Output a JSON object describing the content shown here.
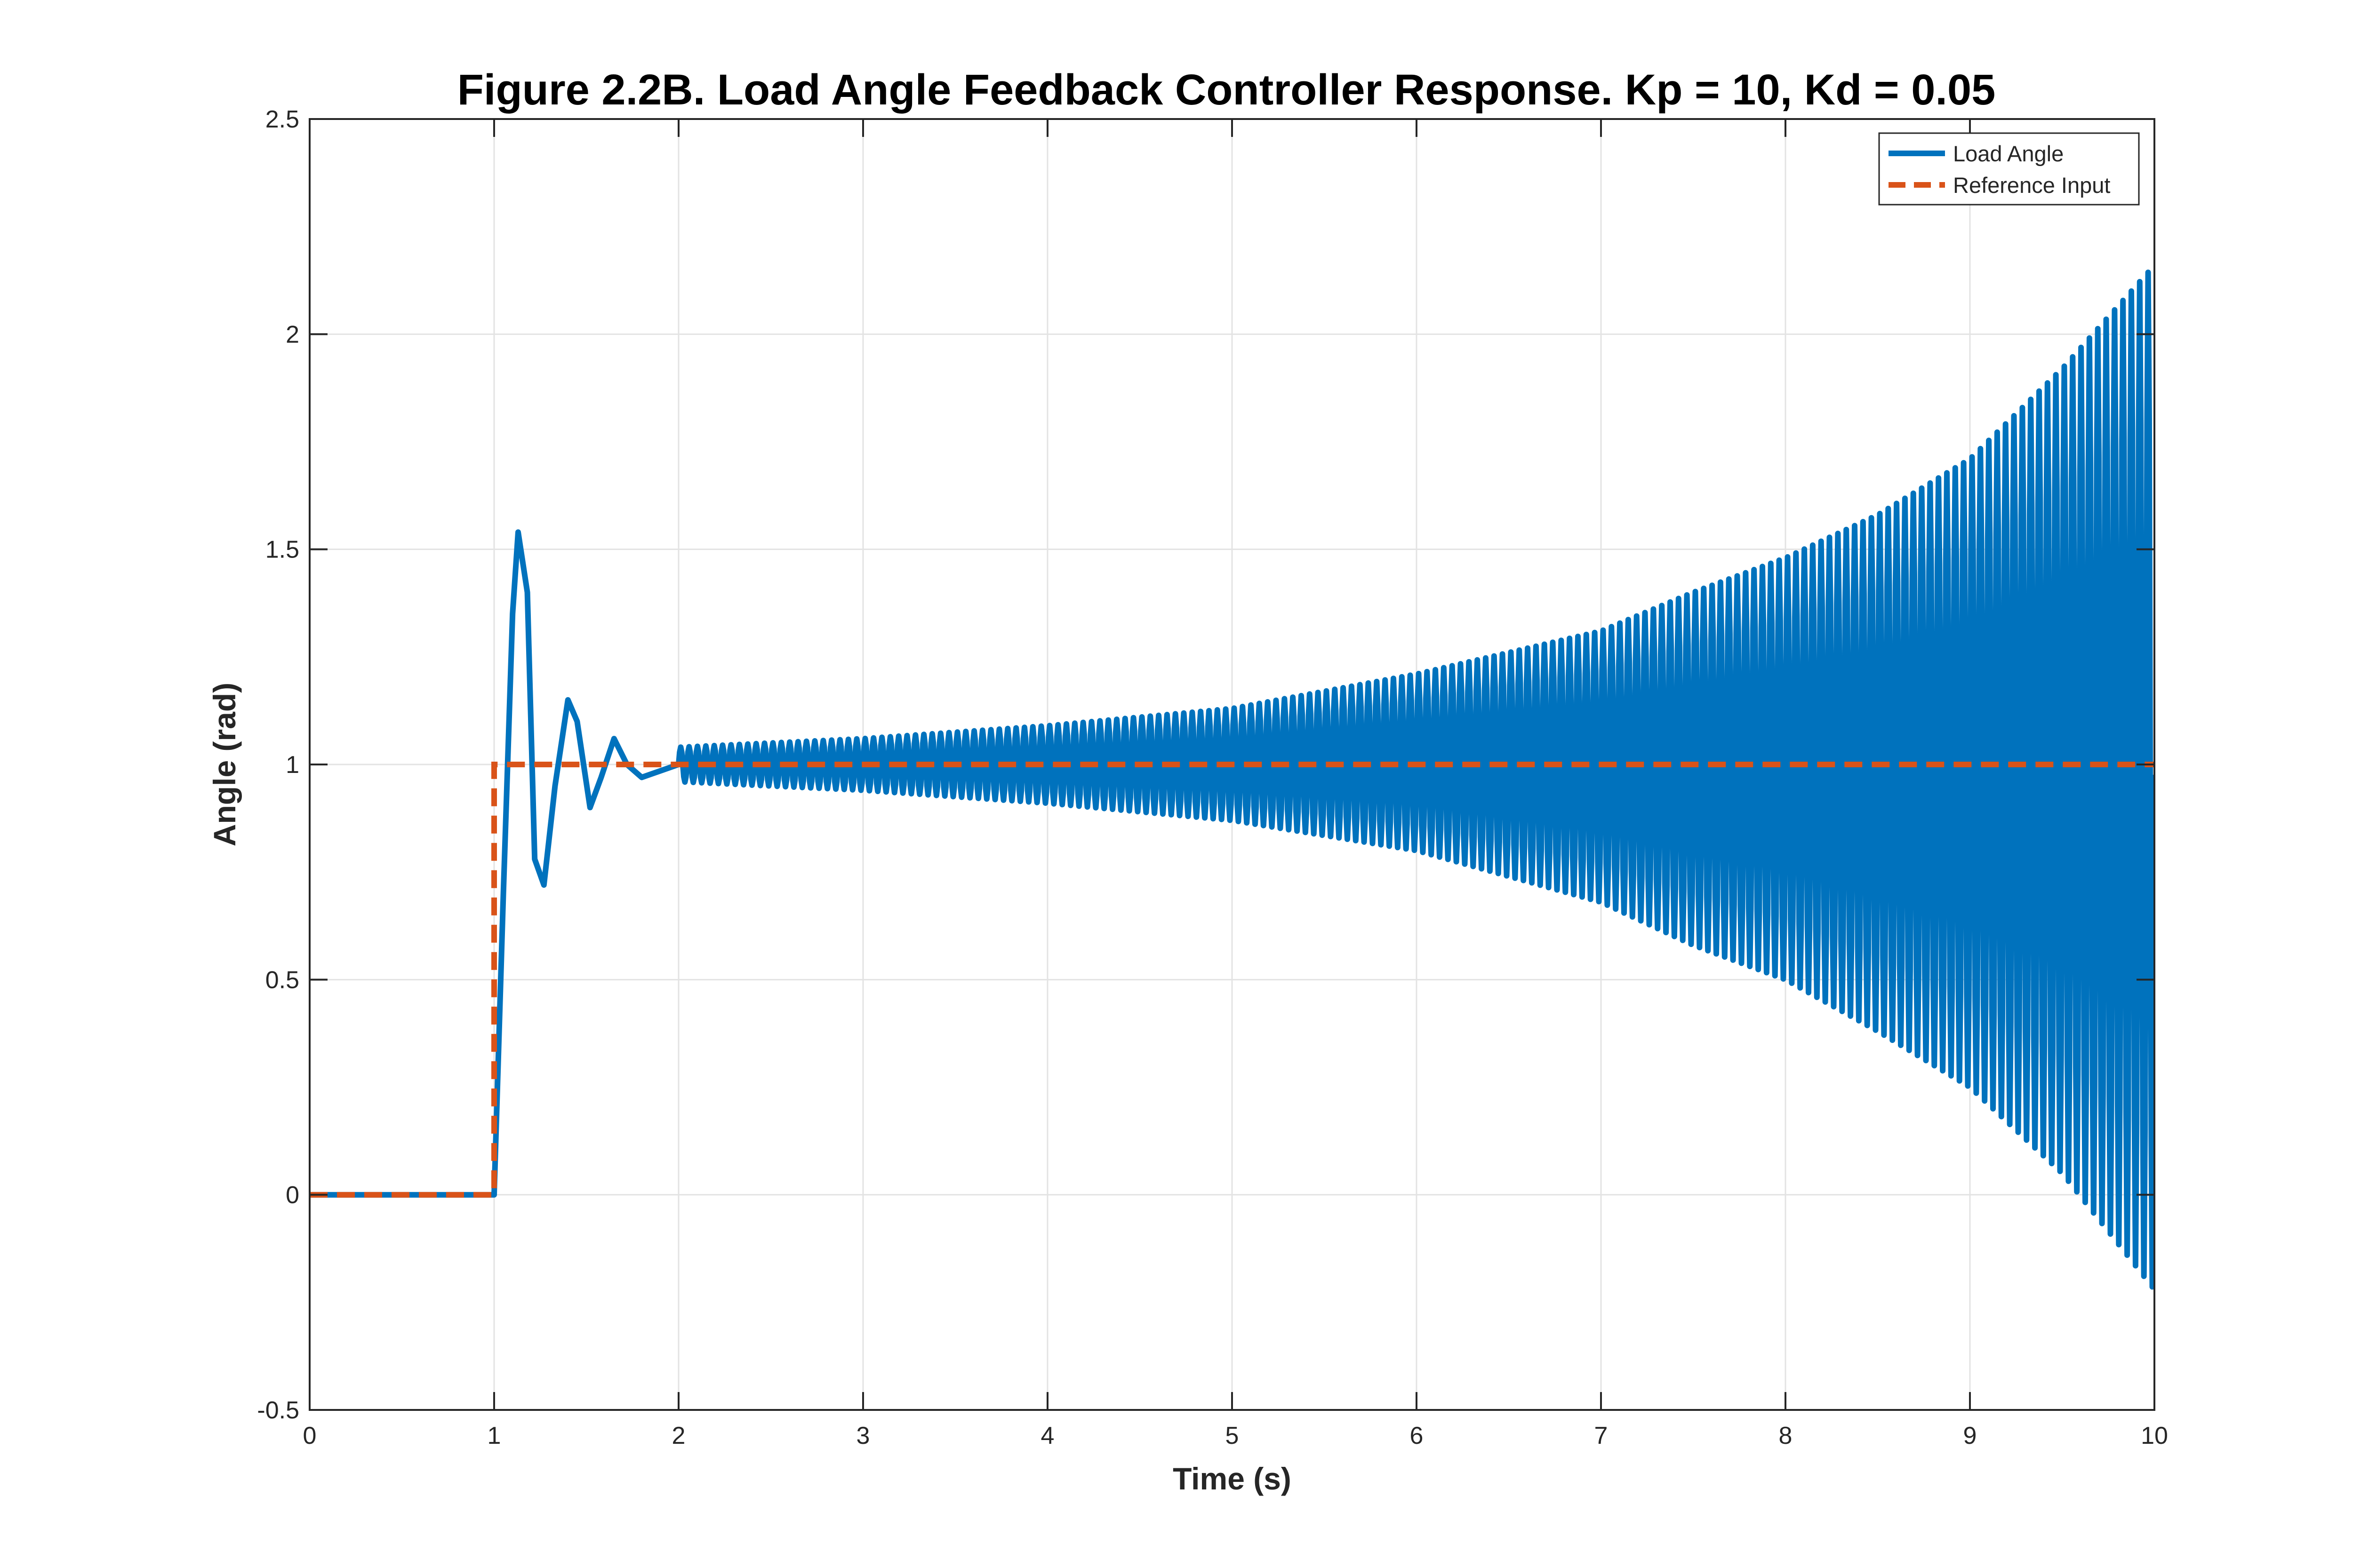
{
  "chart_data": {
    "type": "line",
    "title": "Figure 2.2B. Load Angle Feedback Controller Response. Kp = 10, Kd = 0.05",
    "xlabel": "Time (s)",
    "ylabel": "Angle (rad)",
    "xlim": [
      0,
      10
    ],
    "ylim": [
      -0.5,
      2.5
    ],
    "xticks": [
      "0",
      "1",
      "2",
      "3",
      "4",
      "5",
      "6",
      "7",
      "8",
      "9",
      "10"
    ],
    "yticks": [
      "-0.5",
      "0",
      "0.5",
      "1",
      "1.5",
      "2",
      "2.5"
    ],
    "grid": true,
    "legend_position": "top-right",
    "series": [
      {
        "name": "Load Angle",
        "color": "#0072BD",
        "style": "solid",
        "description_points": {
          "x": [
            0,
            1.0,
            1.05,
            1.1,
            1.13,
            1.18,
            1.22,
            1.27,
            1.33,
            1.4,
            1.45,
            1.52,
            1.58,
            1.65,
            1.72,
            1.8,
            2.0
          ],
          "y": [
            0,
            0,
            0.7,
            1.35,
            1.54,
            1.4,
            0.78,
            0.72,
            0.95,
            1.15,
            1.1,
            0.9,
            0.97,
            1.06,
            1.0,
            0.97,
            1.0
          ]
        },
        "oscillation_envelope": {
          "x": [
            2,
            3,
            4,
            5,
            6,
            7,
            7.5,
            8,
            8.5,
            9,
            9.5,
            10
          ],
          "upper": [
            1.04,
            1.06,
            1.09,
            1.13,
            1.21,
            1.31,
            1.4,
            1.48,
            1.58,
            1.71,
            1.92,
            2.16
          ],
          "lower": [
            0.96,
            0.94,
            0.91,
            0.87,
            0.8,
            0.68,
            0.58,
            0.5,
            0.38,
            0.25,
            0.05,
            -0.22
          ]
        },
        "oscillation_frequency_hz": 22
      },
      {
        "name": "Reference Input",
        "color": "#D95319",
        "style": "dashed",
        "x": [
          0,
          1,
          1,
          10
        ],
        "y": [
          0,
          0,
          1,
          1
        ]
      }
    ]
  }
}
